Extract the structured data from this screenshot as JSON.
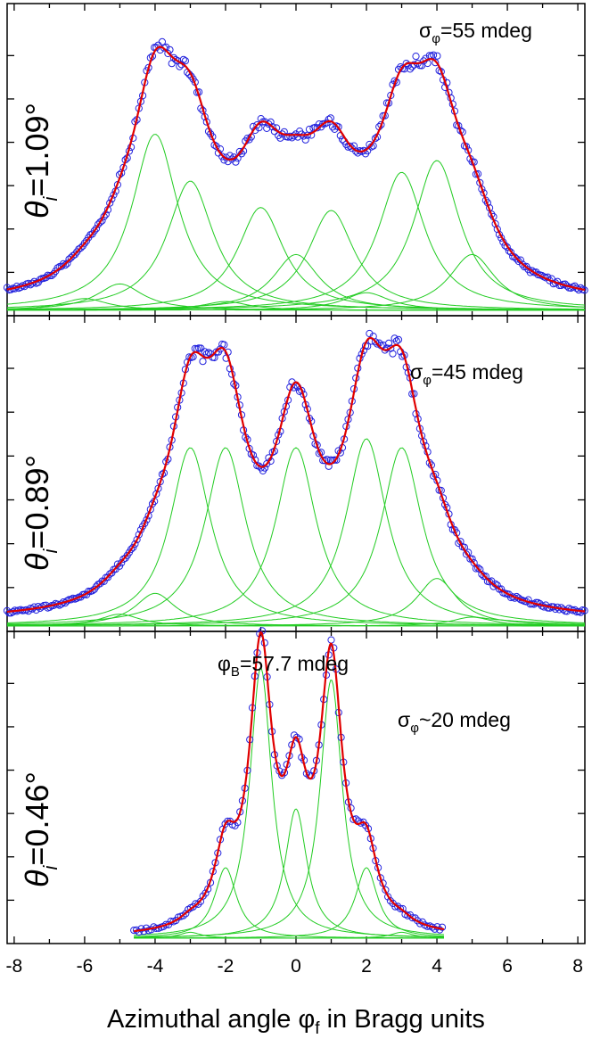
{
  "colors": {
    "data_points": "#2222dd",
    "fit_line": "#e00000",
    "components": "#22cc22",
    "axes": "#000000"
  },
  "shared_x": {
    "label_main": "Azimuthal angle φ",
    "label_sub": "f",
    "label_tail": " in Bragg units",
    "xlim": [
      -8.2,
      8.2
    ],
    "ticks": [
      -8,
      -6,
      -4,
      -2,
      0,
      2,
      4,
      6,
      8
    ],
    "tick_labels": [
      "-8",
      "-6",
      "-4",
      "-2",
      "0",
      "2",
      "4",
      "6",
      "8"
    ]
  },
  "chart_data": [
    {
      "type": "scatter",
      "panel": "top",
      "theta_label_main": "θ",
      "theta_label_sub": "i",
      "theta_label_value": "=1.09°",
      "sigma_label_main": "σ",
      "sigma_label_sub": "φ",
      "sigma_label_value": "=55 mdeg",
      "ylim": [
        0,
        1.02
      ],
      "legend": "none",
      "series": [
        {
          "name": "components",
          "style": "green thin lines",
          "centers": [
            -6,
            -5,
            -4,
            -3,
            -2,
            -1,
            0,
            1,
            2,
            3,
            4,
            5
          ],
          "amplitudes": [
            0.04,
            0.09,
            0.6,
            0.44,
            0.03,
            0.35,
            0.19,
            0.34,
            0.06,
            0.47,
            0.51,
            0.19
          ],
          "width": 0.8
        },
        {
          "name": "fit",
          "style": "red line"
        },
        {
          "name": "measured",
          "style": "blue open circles"
        }
      ]
    },
    {
      "type": "scatter",
      "panel": "middle",
      "theta_label_main": "θ",
      "theta_label_sub": "i",
      "theta_label_value": "=0.89°",
      "sigma_label_main": "σ",
      "sigma_label_sub": "φ",
      "sigma_label_value": "=45 mdeg",
      "ylim": [
        0,
        1.02
      ],
      "legend": "none",
      "series": [
        {
          "name": "components",
          "style": "green thin lines",
          "centers": [
            -5,
            -4,
            -3,
            -2,
            0,
            2,
            3,
            4,
            5
          ],
          "amplitudes": [
            0.04,
            0.11,
            0.6,
            0.6,
            0.6,
            0.63,
            0.6,
            0.16,
            0.03
          ],
          "width": 0.7
        },
        {
          "name": "fit",
          "style": "red line"
        },
        {
          "name": "measured",
          "style": "blue open circles"
        }
      ]
    },
    {
      "type": "scatter",
      "panel": "bottom",
      "theta_label_main": "θ",
      "theta_label_sub": "i",
      "theta_label_value": "=0.46°",
      "sigma_label_main": "σ",
      "sigma_label_sub": "φ",
      "sigma_label_value": "~20 mdeg",
      "phiB_label_main": "φ",
      "phiB_label_sub": "B",
      "phiB_label_value": "=57.7 mdeg",
      "ylim": [
        0,
        1.02
      ],
      "legend": "none",
      "series": [
        {
          "name": "components",
          "style": "green thin lines",
          "centers": [
            -3,
            -2,
            -1,
            0,
            1,
            2,
            3
          ],
          "amplitudes": [
            0.02,
            0.24,
            0.92,
            0.44,
            0.88,
            0.24,
            0.02
          ],
          "width": 0.38
        },
        {
          "name": "fit",
          "style": "red line"
        },
        {
          "name": "measured",
          "style": "blue open circles"
        }
      ]
    }
  ]
}
